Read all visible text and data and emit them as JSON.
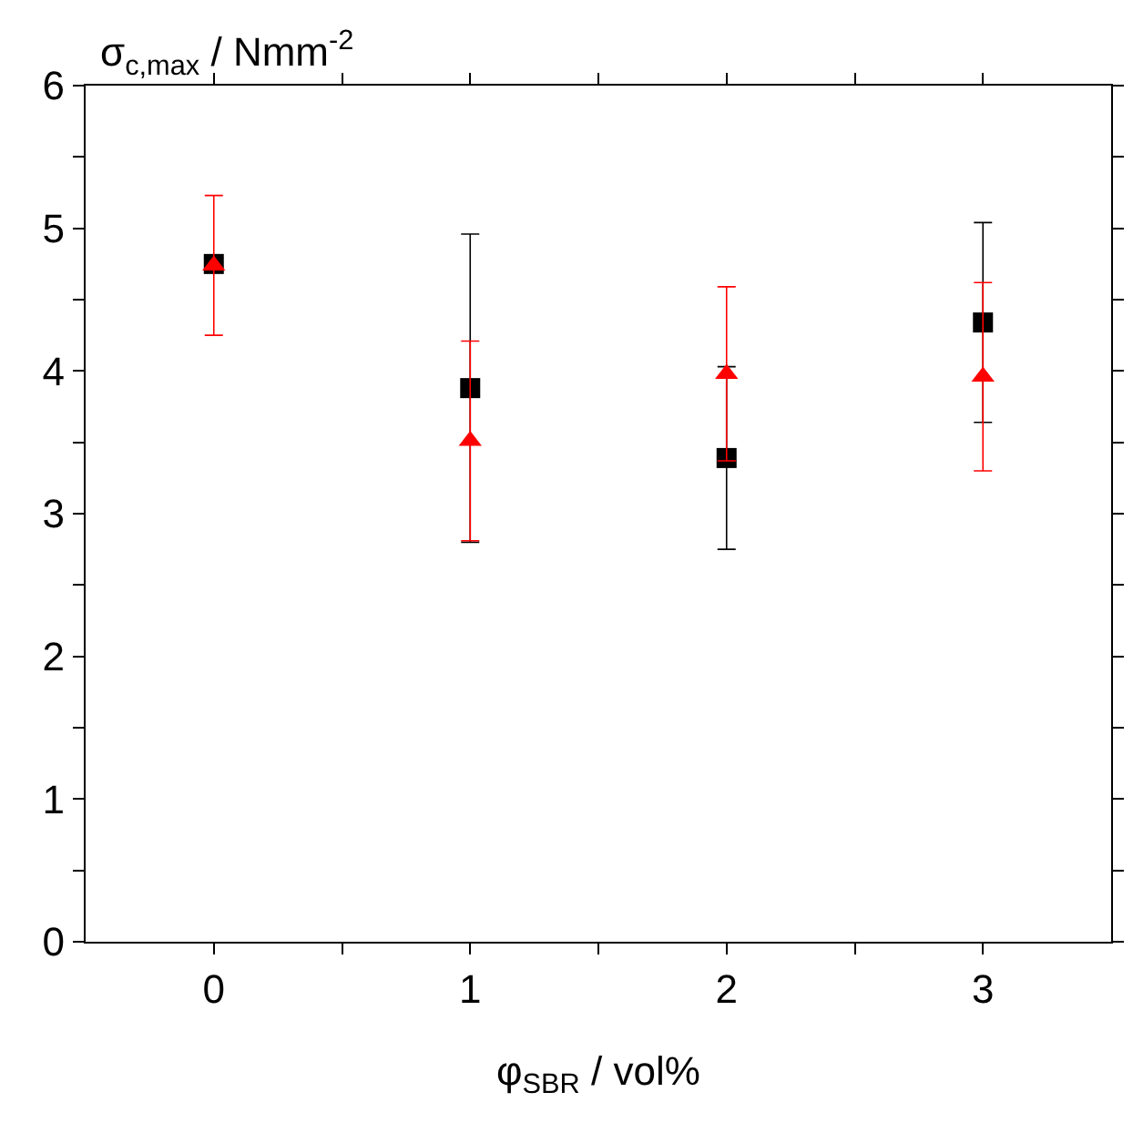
{
  "chart_data": {
    "type": "scatter",
    "xlabel": "φ$_{SBR}$ / vol%",
    "ylabel": "σ$_{c,max}$ / Nmm$^{-2}$",
    "x": [
      0,
      1,
      2,
      3
    ],
    "series": [
      {
        "color": "#000000",
        "marker": "square",
        "values": [
          4.75,
          3.88,
          3.39,
          4.34
        ],
        "errors": [
          null,
          1.08,
          0.64,
          0.7
        ]
      },
      {
        "color": "#ff0000",
        "marker": "triangle",
        "values": [
          4.74,
          3.51,
          3.98,
          3.96
        ],
        "errors": [
          0.49,
          0.7,
          0.61,
          0.66
        ]
      }
    ],
    "xlim": [
      -0.5,
      3.5
    ],
    "xticks": [
      0,
      {
        "value": 0.5,
        "label": null
      },
      1,
      {
        "value": 1.5,
        "label": null
      },
      2,
      {
        "value": 2.5,
        "label": null
      },
      3
    ],
    "ylim": [
      0,
      6
    ],
    "yticks": [
      0,
      {
        "value": 0.5,
        "label": null
      },
      1,
      {
        "value": 1.5,
        "label": null
      },
      2,
      {
        "value": 2.5,
        "label": null
      },
      3,
      {
        "value": 3.5,
        "label": null
      },
      4,
      {
        "value": 4.5,
        "label": null
      },
      5,
      {
        "value": 5.5,
        "label": null
      },
      6
    ]
  }
}
